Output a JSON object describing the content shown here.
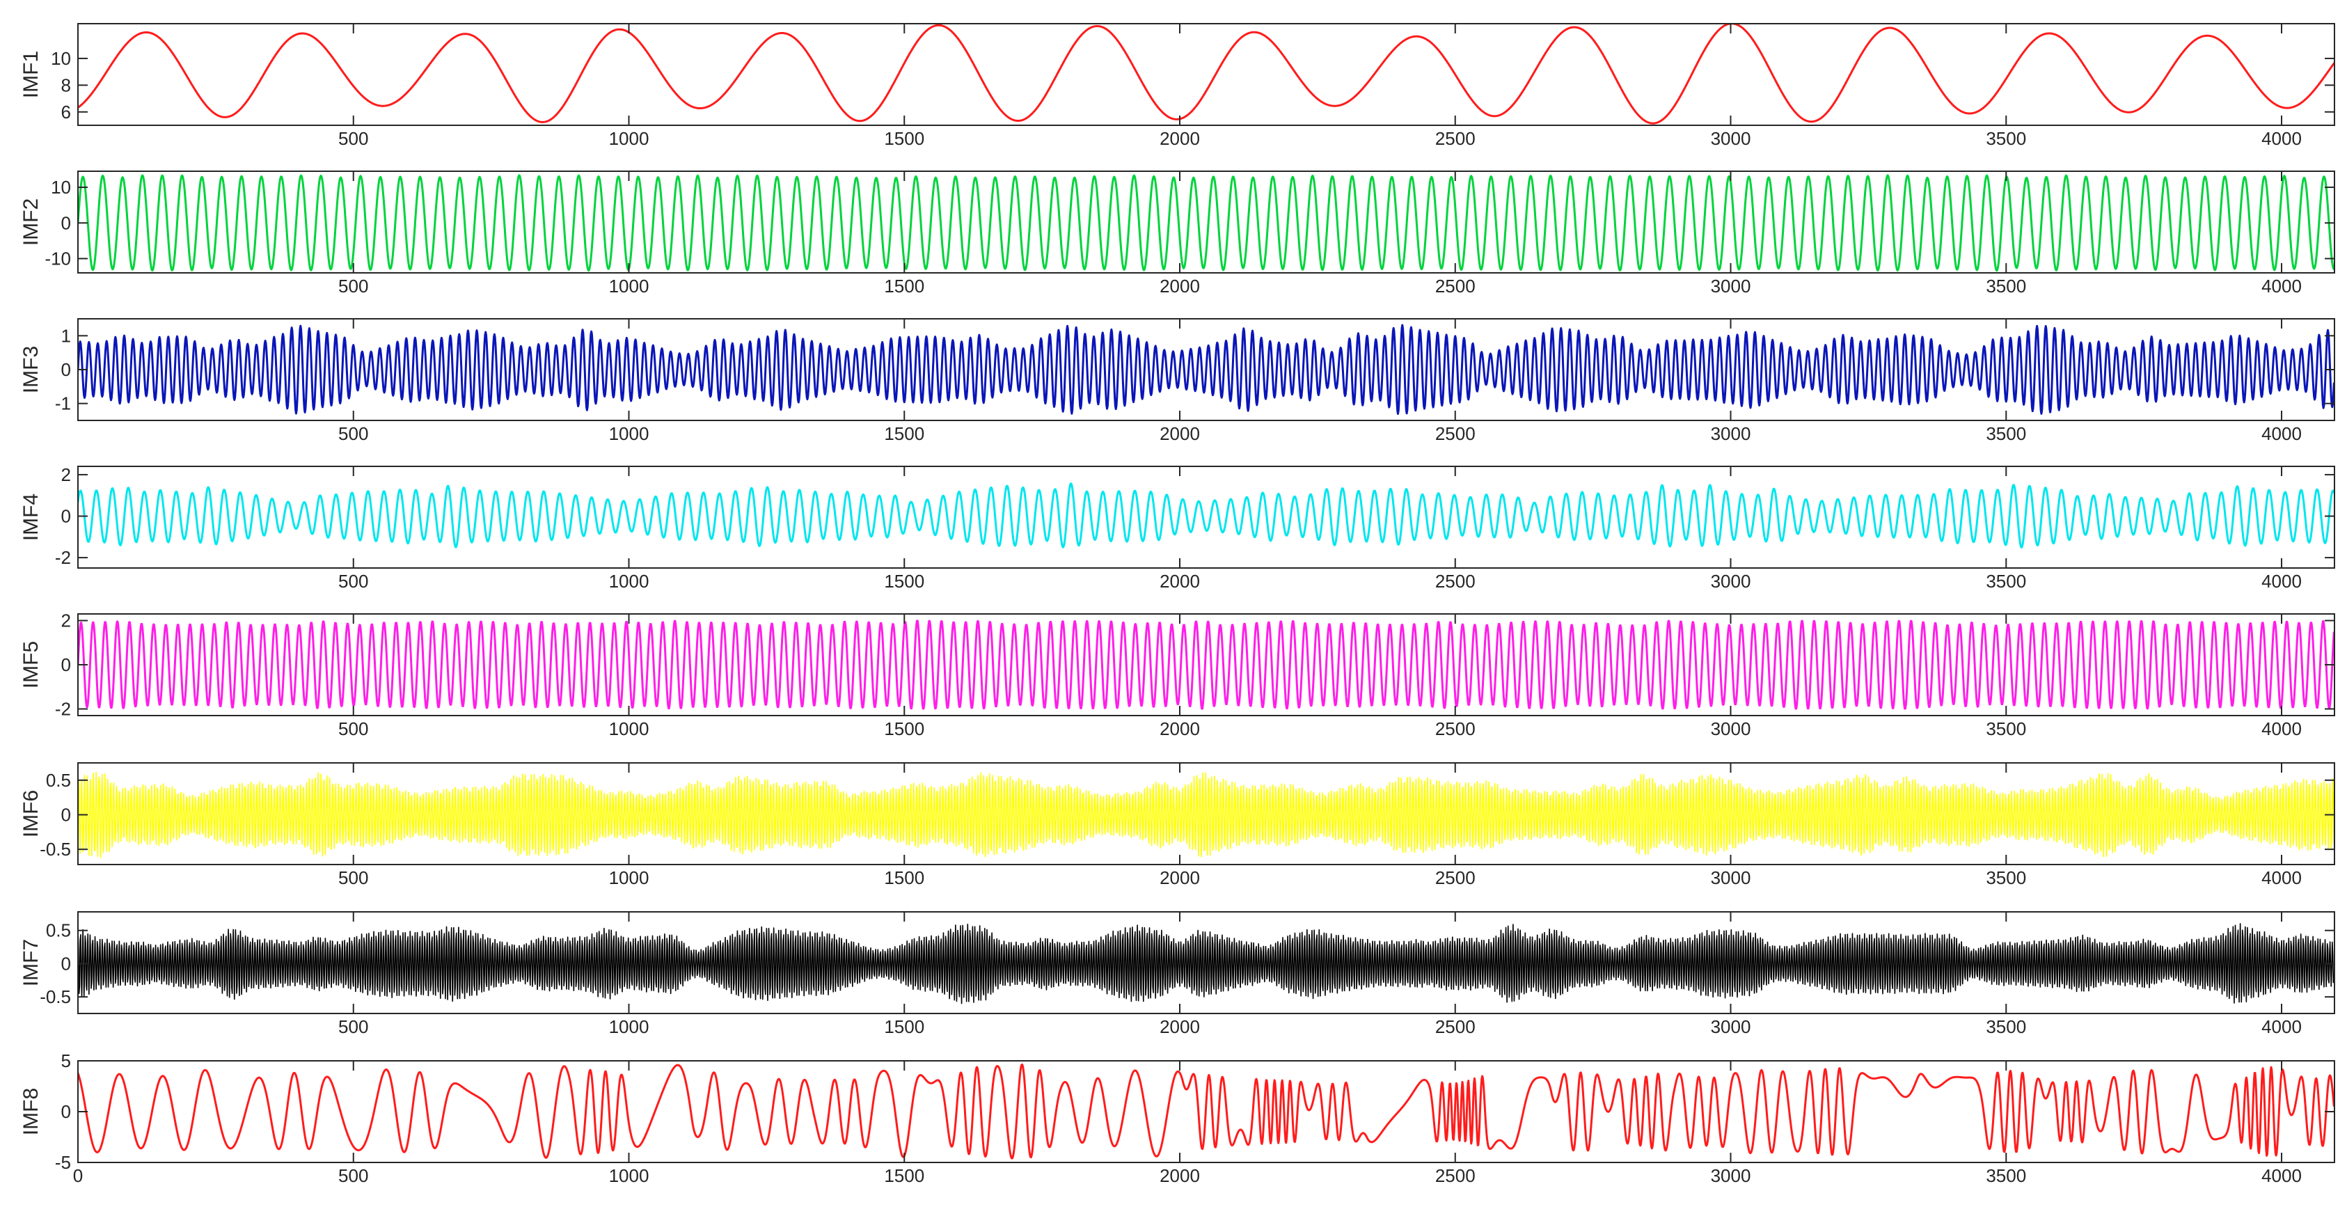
{
  "chart_data": [
    {
      "type": "line",
      "series_label": "IMF1",
      "color": "#ff1c1c",
      "xlim": [
        0,
        4096
      ],
      "ylim": [
        5,
        12.6
      ],
      "yticks": [
        6,
        8,
        10
      ],
      "ytick_labels": [
        "6",
        "8",
        "10"
      ],
      "xticks": [
        500,
        1000,
        1500,
        2000,
        2500,
        3000,
        3500,
        4000
      ],
      "xtick_labels": [
        "500",
        "1000",
        "1500",
        "2000",
        "2500",
        "3000",
        "3500",
        "4000"
      ],
      "signal": {
        "kind": "slow-oscillation",
        "period": 288,
        "center": 8.9,
        "amplitude": 3.2,
        "amp_variation": 0.25,
        "phase": -1.1,
        "samples": 4096
      }
    },
    {
      "type": "line",
      "series_label": "IMF2",
      "color": "#00d43c",
      "xlim": [
        0,
        4096
      ],
      "ylim": [
        -14,
        14.5
      ],
      "yticks": [
        -10,
        0,
        10
      ],
      "ytick_labels": [
        "-10",
        "0",
        "10"
      ],
      "xticks": [
        500,
        1000,
        1500,
        2000,
        2500,
        3000,
        3500,
        4000
      ],
      "xtick_labels": [
        "500",
        "1000",
        "1500",
        "2000",
        "2500",
        "3000",
        "3500",
        "4000"
      ],
      "signal": {
        "kind": "constant-oscillation",
        "period": 36,
        "center": 0,
        "amplitude": 13,
        "amp_variation": 0.03,
        "phase": 0,
        "samples": 4096
      }
    },
    {
      "type": "line",
      "series_label": "IMF3",
      "color": "#0a16b8",
      "xlim": [
        0,
        4096
      ],
      "ylim": [
        -1.5,
        1.5
      ],
      "yticks": [
        -1,
        0,
        1
      ],
      "ytick_labels": [
        "-1",
        "0",
        "1"
      ],
      "xticks": [
        500,
        1000,
        1500,
        2000,
        2500,
        3000,
        3500,
        4000
      ],
      "xtick_labels": [
        "500",
        "1000",
        "1500",
        "2000",
        "2500",
        "3000",
        "3500",
        "4000"
      ],
      "signal": {
        "kind": "modulated-oscillation",
        "period": 16,
        "center": 0,
        "amplitude": 1.05,
        "envelope_period": 290,
        "amp_variation": 0.55,
        "phase": 0,
        "samples": 4096
      }
    },
    {
      "type": "line",
      "series_label": "IMF4",
      "color": "#00e6ee",
      "xlim": [
        0,
        4096
      ],
      "ylim": [
        -2.5,
        2.4
      ],
      "yticks": [
        -2,
        0,
        2
      ],
      "ytick_labels": [
        "-2",
        "0",
        "2"
      ],
      "xticks": [
        500,
        1000,
        1500,
        2000,
        2500,
        3000,
        3500,
        4000
      ],
      "xtick_labels": [
        "500",
        "1000",
        "1500",
        "2000",
        "2500",
        "3000",
        "3500",
        "4000"
      ],
      "signal": {
        "kind": "modulated-oscillation",
        "period": 29,
        "center": 0,
        "amplitude": 1.35,
        "envelope_period": 560,
        "amp_variation": 0.4,
        "phase": 0.6,
        "samples": 4096
      }
    },
    {
      "type": "line",
      "series_label": "IMF5",
      "color": "#ff1ee8",
      "xlim": [
        0,
        4096
      ],
      "ylim": [
        -2.3,
        2.3
      ],
      "yticks": [
        -2,
        0,
        2
      ],
      "ytick_labels": [
        "-2",
        "0",
        "2"
      ],
      "xticks": [
        500,
        1000,
        1500,
        2000,
        2500,
        3000,
        3500,
        4000
      ],
      "xtick_labels": [
        "500",
        "1000",
        "1500",
        "2000",
        "2500",
        "3000",
        "3500",
        "4000"
      ],
      "signal": {
        "kind": "constant-oscillation",
        "period": 22,
        "center": 0,
        "amplitude": 1.9,
        "amp_variation": 0.06,
        "phase": 0,
        "samples": 4096
      }
    },
    {
      "type": "line",
      "series_label": "IMF6",
      "color": "#ffff00",
      "xlim": [
        0,
        4096
      ],
      "ylim": [
        -0.72,
        0.75
      ],
      "yticks": [
        -0.5,
        0,
        0.5
      ],
      "ytick_labels": [
        "-0.5",
        "0",
        "0.5"
      ],
      "xticks": [
        500,
        1000,
        1500,
        2000,
        2500,
        3000,
        3500,
        4000
      ],
      "xtick_labels": [
        "500",
        "1000",
        "1500",
        "2000",
        "2500",
        "3000",
        "3500",
        "4000"
      ],
      "signal": {
        "kind": "dense-modulated",
        "period": 5.3,
        "center": 0,
        "amplitude": 0.52,
        "envelope_period": 410,
        "amp_variation": 0.45,
        "phase": 0,
        "samples": 4096
      }
    },
    {
      "type": "line",
      "series_label": "IMF7",
      "color": "#000000",
      "xlim": [
        0,
        4096
      ],
      "ylim": [
        -0.75,
        0.78
      ],
      "yticks": [
        -0.5,
        0,
        0.5
      ],
      "ytick_labels": [
        "-0.5",
        "0",
        "0.5"
      ],
      "xticks": [
        500,
        1000,
        1500,
        2000,
        2500,
        3000,
        3500,
        4000
      ],
      "xtick_labels": [
        "500",
        "1000",
        "1500",
        "2000",
        "2500",
        "3000",
        "3500",
        "4000"
      ],
      "signal": {
        "kind": "dense-modulated",
        "period": 4.4,
        "center": 0,
        "amplitude": 0.48,
        "envelope_period": 330,
        "amp_variation": 0.55,
        "phase": 1.3,
        "samples": 4096
      }
    },
    {
      "type": "line",
      "series_label": "IMF8",
      "color": "#ff1c1c",
      "xlim": [
        0,
        4096
      ],
      "ylim": [
        -5,
        5
      ],
      "yticks": [
        -5,
        0,
        5
      ],
      "ytick_labels": [
        "-5",
        "0",
        "5"
      ],
      "xticks": [
        0,
        500,
        1000,
        1500,
        2000,
        2500,
        3000,
        3500,
        4000
      ],
      "xtick_labels": [
        "0",
        "500",
        "1000",
        "1500",
        "2000",
        "2500",
        "3000",
        "3500",
        "4000"
      ],
      "signal": {
        "kind": "irregular-oscillation",
        "period": 78,
        "center": 0,
        "amplitude": 3.6,
        "amp_variation": 0.3,
        "phase": 1.57,
        "samples": 4096
      }
    }
  ]
}
